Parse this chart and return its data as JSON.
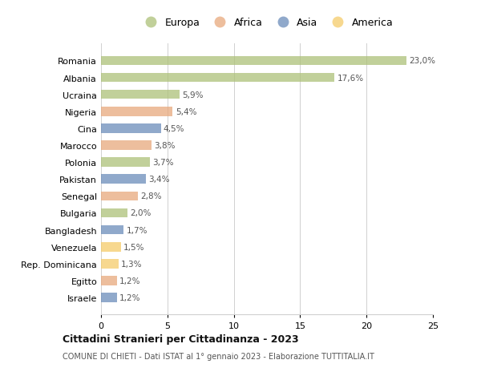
{
  "countries": [
    "Romania",
    "Albania",
    "Ucraina",
    "Nigeria",
    "Cina",
    "Marocco",
    "Polonia",
    "Pakistan",
    "Senegal",
    "Bulgaria",
    "Bangladesh",
    "Venezuela",
    "Rep. Dominicana",
    "Egitto",
    "Israele"
  ],
  "values": [
    23.0,
    17.6,
    5.9,
    5.4,
    4.5,
    3.8,
    3.7,
    3.4,
    2.8,
    2.0,
    1.7,
    1.5,
    1.3,
    1.2,
    1.2
  ],
  "labels": [
    "23,0%",
    "17,6%",
    "5,9%",
    "5,4%",
    "4,5%",
    "3,8%",
    "3,7%",
    "3,4%",
    "2,8%",
    "2,0%",
    "1,7%",
    "1,5%",
    "1,3%",
    "1,2%",
    "1,2%"
  ],
  "continents": [
    "Europa",
    "Europa",
    "Europa",
    "Africa",
    "Asia",
    "Africa",
    "Europa",
    "Asia",
    "Africa",
    "Europa",
    "Asia",
    "America",
    "America",
    "Africa",
    "Asia"
  ],
  "continent_colors": {
    "Europa": "#adc178",
    "Africa": "#e8a87c",
    "Asia": "#6b8cba",
    "America": "#f5cc6a"
  },
  "legend_order": [
    "Europa",
    "Africa",
    "Asia",
    "America"
  ],
  "xlim": [
    0,
    25
  ],
  "xticks": [
    0,
    5,
    10,
    15,
    20,
    25
  ],
  "title": "Cittadini Stranieri per Cittadinanza - 2023",
  "subtitle": "COMUNE DI CHIETI - Dati ISTAT al 1° gennaio 2023 - Elaborazione TUTTITALIA.IT",
  "bg_color": "#ffffff",
  "grid_color": "#d0d0d0",
  "bar_alpha": 0.75,
  "bar_height": 0.55
}
